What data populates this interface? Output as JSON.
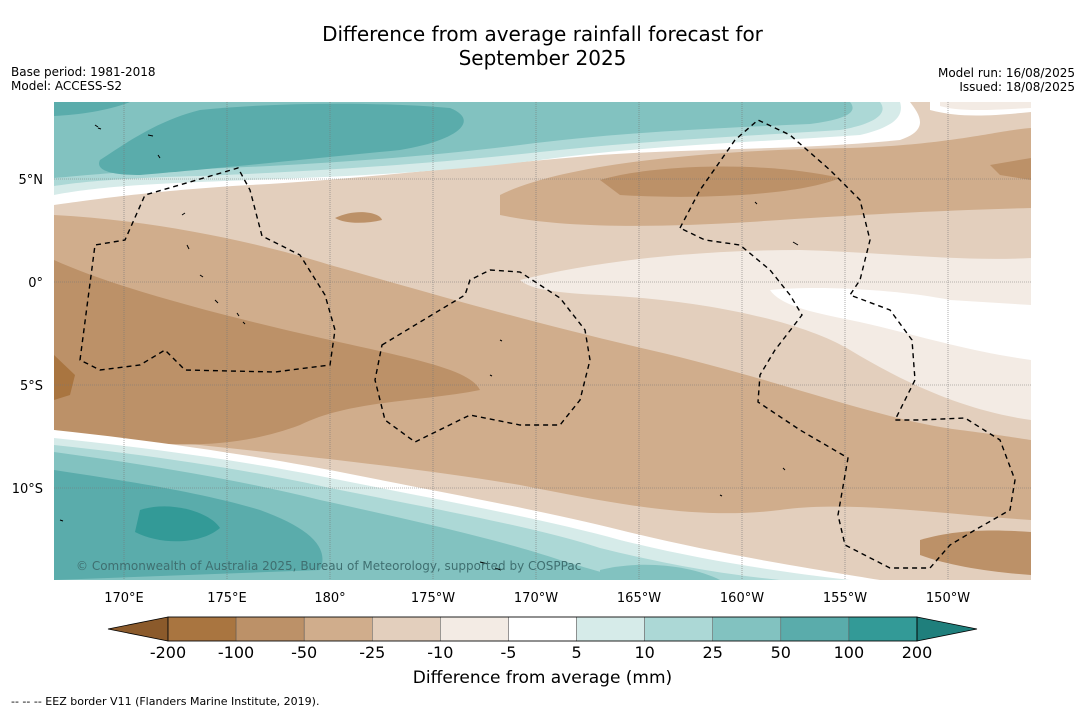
{
  "title_line1": "Difference from average rainfall forecast for",
  "title_line2": "September 2025",
  "meta_left": {
    "base_period": "Base period: 1981-2018",
    "model": "Model: ACCESS-S2"
  },
  "meta_right": {
    "model_run": "Model run: 16/08/2025",
    "issued": "Issued: 18/08/2025"
  },
  "lon_labels": [
    "170°E",
    "175°E",
    "180°",
    "175°W",
    "170°W",
    "165°W",
    "160°W",
    "155°W",
    "150°W"
  ],
  "lat_labels": [
    "5°N",
    "0°",
    "5°S",
    "10°S"
  ],
  "credit": "© Commonwealth of Australia 2025, Bureau of Meteorology, supported by COSPPac",
  "colorbar": {
    "ticks": [
      "-200",
      "-100",
      "-50",
      "-25",
      "-10",
      "-5",
      "5",
      "10",
      "25",
      "50",
      "100",
      "200"
    ],
    "colors": [
      "#8b5a2b",
      "#a97540",
      "#bc9168",
      "#d0ad8c",
      "#e3cfbd",
      "#f3ebe4",
      "#ffffff",
      "#d6ebe9",
      "#acd8d6",
      "#82c2c0",
      "#5aacab",
      "#339a97",
      "#1f7f7c"
    ],
    "title": "Difference from average (mm)"
  },
  "footer": "-- -- -- EEZ border V11 (Flanders Marine Institute, 2019)."
}
